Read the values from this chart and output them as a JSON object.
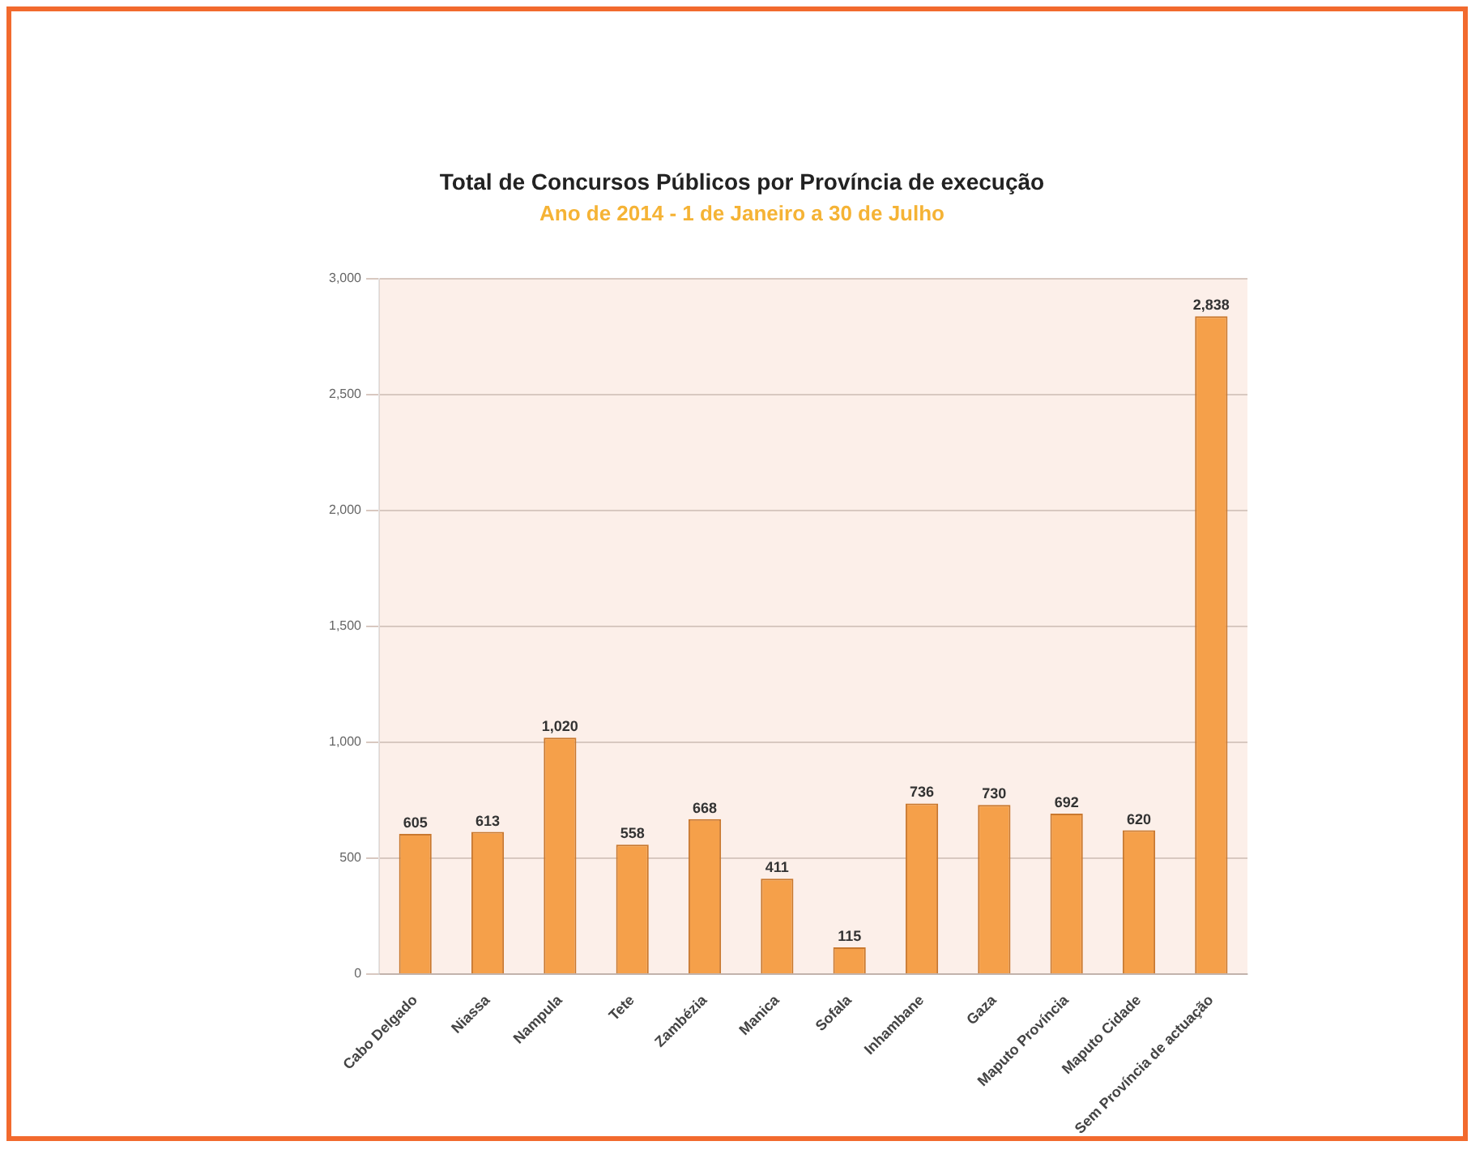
{
  "chart_data": {
    "type": "bar",
    "title": "Total de Concursos Públicos por Província de execução",
    "subtitle": "Ano de 2014 - 1 de Janeiro a 30 de Julho",
    "categories": [
      "Cabo Delgado",
      "Niassa",
      "Nampula",
      "Tete",
      "Zambézia",
      "Manica",
      "Sofala",
      "Inhambane",
      "Gaza",
      "Maputo Província",
      "Maputo Cidade",
      "Sem Província de actuação"
    ],
    "values": [
      605,
      613,
      1020,
      558,
      668,
      411,
      115,
      736,
      730,
      692,
      620,
      2838
    ],
    "value_labels": [
      "605",
      "613",
      "1,020",
      "558",
      "668",
      "411",
      "115",
      "736",
      "730",
      "692",
      "620",
      "2,838"
    ],
    "color": "#f5a04a",
    "ylim": [
      0,
      3000
    ],
    "yticks": [
      {
        "value": 0,
        "label": "0"
      },
      {
        "value": 500,
        "label": "500"
      },
      {
        "value": 1000,
        "label": "1,000"
      },
      {
        "value": 1500,
        "label": "1,500"
      },
      {
        "value": 2000,
        "label": "2,000"
      },
      {
        "value": 2500,
        "label": "2,500"
      },
      {
        "value": 3000,
        "label": "3,000"
      }
    ],
    "grid": "y",
    "legend": false
  }
}
